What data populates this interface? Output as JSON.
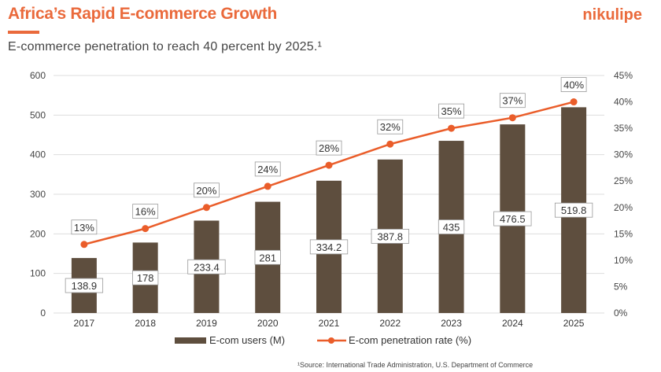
{
  "header": {
    "title": "Africa’s Rapid E-commerce Growth",
    "brand": "nikulipe",
    "subtitle": "E-commerce penetration to reach 40 percent by 2025.¹"
  },
  "footer": {
    "source": "¹Source:  International Trade Administration, U.S. Department of Commerce"
  },
  "colors": {
    "bar": "#5e4e3e",
    "line": "#ea5d2a",
    "accent": "#ea6a3c"
  },
  "chart_data": {
    "type": "bar+line",
    "categories": [
      "2017",
      "2018",
      "2019",
      "2020",
      "2021",
      "2022",
      "2023",
      "2024",
      "2025"
    ],
    "series": [
      {
        "name": "E-com users (M)",
        "type": "bar",
        "axis": "left",
        "values": [
          138.9,
          178,
          233.4,
          281,
          334.2,
          387.8,
          435,
          476.5,
          519.8
        ],
        "labels": [
          "138.9",
          "178",
          "233.4",
          "281",
          "334.2",
          "387.8",
          "435",
          "476.5",
          "519.8"
        ]
      },
      {
        "name": "E-com penetration rate (%)",
        "type": "line",
        "axis": "right",
        "values": [
          13,
          16,
          20,
          24,
          28,
          32,
          35,
          37,
          40
        ],
        "labels": [
          "13%",
          "16%",
          "20%",
          "24%",
          "28%",
          "32%",
          "35%",
          "37%",
          "40%"
        ]
      }
    ],
    "left_axis": {
      "ylim": [
        0,
        600
      ],
      "ticks": [
        "0",
        "100",
        "200",
        "300",
        "400",
        "500",
        "600"
      ]
    },
    "right_axis": {
      "ylim": [
        0,
        45
      ],
      "ticks": [
        "0%",
        "5%",
        "10%",
        "15%",
        "20%",
        "25%",
        "30%",
        "35%",
        "40%",
        "45%"
      ]
    },
    "grid": "horizontal",
    "legend": "bottom"
  }
}
